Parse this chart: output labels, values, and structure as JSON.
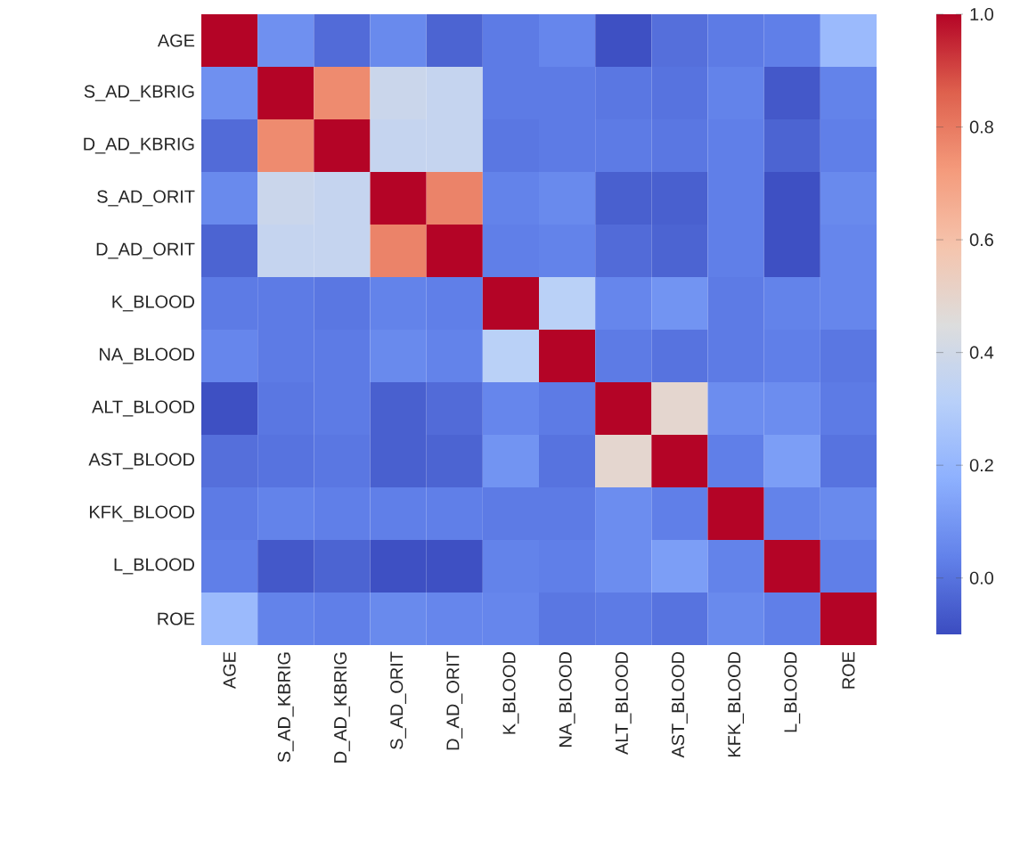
{
  "chart_data": {
    "type": "heatmap",
    "categories": [
      "AGE",
      "S_AD_KBRIG",
      "D_AD_KBRIG",
      "S_AD_ORIT",
      "D_AD_ORIT",
      "K_BLOOD",
      "NA_BLOOD",
      "ALT_BLOOD",
      "AST_BLOOD",
      "KFK_BLOOD",
      "L_BLOOD",
      "ROE"
    ],
    "y_categories": [
      "AGE",
      "S_AD_KBRIG",
      "D_AD_KBRIG",
      "S_AD_ORIT",
      "D_AD_ORIT",
      "K_BLOOD",
      "NA_BLOOD",
      "ALT_BLOOD",
      "AST_BLOOD",
      "KFK_BLOOD",
      "L_BLOOD",
      "ROE"
    ],
    "cells": [
      [
        1.0,
        0.08,
        -0.02,
        0.06,
        -0.04,
        0.02,
        0.05,
        -0.09,
        -0.01,
        0.02,
        0.03,
        0.22
      ],
      [
        0.08,
        1.0,
        0.76,
        0.38,
        0.36,
        0.02,
        0.02,
        0.01,
        0.0,
        0.04,
        -0.07,
        0.04
      ],
      [
        -0.02,
        0.76,
        1.0,
        0.36,
        0.36,
        0.01,
        0.02,
        0.02,
        0.01,
        0.03,
        -0.04,
        0.03
      ],
      [
        0.06,
        0.38,
        0.36,
        1.0,
        0.78,
        0.04,
        0.06,
        -0.05,
        -0.05,
        0.03,
        -0.09,
        0.06
      ],
      [
        -0.04,
        0.36,
        0.36,
        0.78,
        1.0,
        0.03,
        0.04,
        -0.02,
        -0.04,
        0.03,
        -0.09,
        0.05
      ],
      [
        0.02,
        0.02,
        0.01,
        0.04,
        0.03,
        1.0,
        0.32,
        0.05,
        0.09,
        0.02,
        0.04,
        0.05
      ],
      [
        0.05,
        0.02,
        0.02,
        0.06,
        0.04,
        0.32,
        1.0,
        0.02,
        0.0,
        0.02,
        0.03,
        0.01
      ],
      [
        -0.09,
        0.01,
        0.02,
        -0.05,
        -0.02,
        0.05,
        0.02,
        1.0,
        0.49,
        0.07,
        0.07,
        0.02
      ],
      [
        -0.01,
        0.0,
        0.01,
        -0.05,
        -0.04,
        0.09,
        0.0,
        0.49,
        1.0,
        0.03,
        0.12,
        0.0
      ],
      [
        0.02,
        0.04,
        0.03,
        0.03,
        0.03,
        0.02,
        0.02,
        0.07,
        0.03,
        1.0,
        0.04,
        0.06
      ],
      [
        0.03,
        -0.07,
        -0.04,
        -0.09,
        -0.09,
        0.04,
        0.03,
        0.07,
        0.12,
        0.04,
        1.0,
        0.03
      ],
      [
        0.22,
        0.04,
        0.03,
        0.06,
        0.05,
        0.05,
        0.01,
        0.02,
        0.0,
        0.06,
        0.03,
        1.0
      ]
    ],
    "clim": [
      -0.1,
      1.0
    ],
    "cticks": [
      {
        "value": 0.0,
        "label": "0.0"
      },
      0.2,
      0.4,
      0.6,
      0.8,
      {
        "value": 1.0,
        "label": "1.0"
      }
    ]
  }
}
